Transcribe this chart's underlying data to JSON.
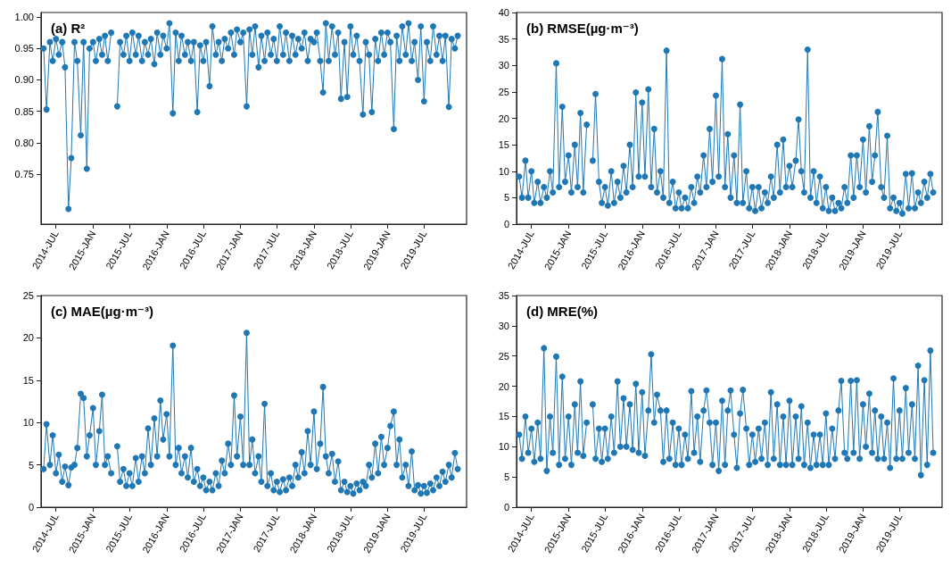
{
  "chart_data": [
    {
      "type": "line",
      "title": "(a) R²",
      "color": "#1f77b4",
      "marker": "circle",
      "xlim": [
        "2014-04-18",
        "2020-01-28"
      ],
      "ylim": [
        0.671,
        1.007
      ],
      "xticks": [
        {
          "value": "2014-07",
          "label": "2014-JUL"
        },
        {
          "value": "2015-01",
          "label": "2015-JAN"
        },
        {
          "value": "2015-07",
          "label": "2015-JUL"
        },
        {
          "value": "2016-01",
          "label": "2016-JAN"
        },
        {
          "value": "2016-07",
          "label": "2016-JUL"
        },
        {
          "value": "2017-01",
          "label": "2017-JAN"
        },
        {
          "value": "2017-07",
          "label": "2017-JUL"
        },
        {
          "value": "2018-01",
          "label": "2018-JAN"
        },
        {
          "value": "2018-07",
          "label": "2018-JUL"
        },
        {
          "value": "2019-01",
          "label": "2019-JAN"
        },
        {
          "value": "2019-07",
          "label": "2019-JUL"
        }
      ],
      "yticks": [
        0.75,
        {
          "value": 0.8,
          "label": "0.80"
        },
        0.85,
        {
          "value": 0.9,
          "label": "0.90"
        },
        0.95,
        {
          "value": 1,
          "label": "1.00"
        }
      ],
      "x": [
        "2014-05-01",
        "2014-05-15",
        "2014-06-01",
        "2014-06-15",
        "2014-07-01",
        "2014-07-15",
        "2014-08-01",
        "2014-08-15",
        "2014-09-01",
        "2014-09-15",
        "2014-10-01",
        "2014-10-15",
        "2014-11-01",
        "2014-11-15",
        "2014-12-01",
        "2014-12-15",
        "2015-01-01",
        "2015-01-15",
        "2015-02-01",
        "2015-02-15",
        "2015-03-01",
        "2015-03-15",
        "2015-04-01",
        "2015-04-15",
        "2015-05-01",
        "2015-05-15",
        "2015-06-01",
        "2015-06-15",
        "2015-07-01",
        "2015-07-15",
        "2015-08-01",
        "2015-08-15",
        "2015-09-01",
        "2015-09-15",
        "2015-10-01",
        "2015-10-15",
        "2015-11-01",
        "2015-11-15",
        "2015-12-01",
        "2015-12-15",
        "2016-01-01",
        "2016-01-15",
        "2016-02-01",
        "2016-02-15",
        "2016-03-01",
        "2016-03-15",
        "2016-04-01",
        "2016-04-15",
        "2016-05-01",
        "2016-05-15",
        "2016-06-01",
        "2016-06-15",
        "2016-07-01",
        "2016-07-15",
        "2016-08-01",
        "2016-08-15",
        "2016-09-01",
        "2016-09-15",
        "2016-10-01",
        "2016-10-15",
        "2016-11-01",
        "2016-11-15",
        "2016-12-01",
        "2016-12-15",
        "2017-01-01",
        "2017-01-15",
        "2017-02-01",
        "2017-02-15",
        "2017-03-01",
        "2017-03-15",
        "2017-04-01",
        "2017-04-15",
        "2017-05-01",
        "2017-05-15",
        "2017-06-01",
        "2017-06-15",
        "2017-07-01",
        "2017-07-15",
        "2017-08-01",
        "2017-08-15",
        "2017-09-01",
        "2017-09-15",
        "2017-10-01",
        "2017-10-15",
        "2017-11-01",
        "2017-11-15",
        "2017-12-01",
        "2017-12-15",
        "2018-01-01",
        "2018-01-15",
        "2018-02-01",
        "2018-02-15",
        "2018-03-01",
        "2018-03-15",
        "2018-04-01",
        "2018-04-15",
        "2018-05-01",
        "2018-05-15",
        "2018-06-01",
        "2018-06-15",
        "2018-07-01",
        "2018-07-15",
        "2018-08-01",
        "2018-08-15",
        "2018-09-01",
        "2018-09-15",
        "2018-10-01",
        "2018-10-15",
        "2018-11-01",
        "2018-11-15",
        "2018-12-01",
        "2018-12-15",
        "2019-01-01",
        "2019-01-15",
        "2019-02-01",
        "2019-02-15",
        "2019-03-01",
        "2019-03-15",
        "2019-04-01",
        "2019-04-15",
        "2019-05-01",
        "2019-05-15",
        "2019-06-01",
        "2019-06-15",
        "2019-07-01",
        "2019-07-15",
        "2019-08-01",
        "2019-08-15",
        "2019-09-01",
        "2019-09-15",
        "2019-10-01",
        "2019-10-15",
        "2019-11-01",
        "2019-11-15",
        "2019-12-01",
        "2019-12-15"
      ],
      "values": [
        0.95,
        0.853,
        0.96,
        0.93,
        0.965,
        0.94,
        0.96,
        0.92,
        0.695,
        0.776,
        0.96,
        0.93,
        0.812,
        0.96,
        0.759,
        0.95,
        0.96,
        0.93,
        0.965,
        0.94,
        0.97,
        0.93,
        0.975,
        null,
        0.858,
        0.96,
        0.94,
        0.97,
        0.93,
        0.975,
        0.94,
        0.97,
        0.93,
        0.96,
        0.94,
        0.965,
        0.925,
        0.975,
        0.94,
        0.97,
        0.95,
        0.99,
        0.847,
        0.975,
        0.93,
        0.97,
        0.94,
        0.96,
        0.93,
        0.96,
        0.849,
        0.955,
        0.93,
        0.96,
        0.89,
        0.985,
        0.94,
        0.96,
        0.93,
        0.965,
        0.95,
        0.975,
        0.94,
        0.98,
        0.96,
        0.975,
        0.858,
        0.98,
        0.94,
        0.985,
        0.92,
        0.97,
        0.93,
        0.975,
        0.94,
        0.965,
        0.93,
        0.985,
        0.94,
        0.975,
        0.93,
        0.97,
        0.94,
        0.965,
        0.95,
        0.975,
        0.93,
        0.965,
        0.96,
        0.975,
        0.93,
        0.88,
        0.99,
        0.93,
        0.985,
        0.94,
        0.975,
        0.87,
        0.96,
        0.873,
        0.985,
        0.94,
        0.97,
        0.93,
        0.845,
        0.96,
        0.94,
        0.849,
        0.965,
        0.93,
        0.975,
        0.94,
        0.975,
        0.96,
        0.822,
        0.97,
        0.93,
        0.985,
        0.94,
        0.99,
        0.93,
        0.96,
        0.9,
        0.985,
        0.866,
        0.96,
        0.93,
        0.985,
        0.94,
        0.97,
        0.93,
        0.97,
        0.857,
        0.965,
        0.95,
        0.97
      ]
    },
    {
      "type": "line",
      "title": "(b) RMSE(µg·m⁻³)",
      "color": "#1f77b4",
      "marker": "circle",
      "xlim": [
        "2014-04-18",
        "2020-01-28"
      ],
      "ylim": [
        0,
        40
      ],
      "xticks": [
        {
          "value": "2014-07",
          "label": "2014-JUL"
        },
        {
          "value": "2015-01",
          "label": "2015-JAN"
        },
        {
          "value": "2015-07",
          "label": "2015-JUL"
        },
        {
          "value": "2016-01",
          "label": "2016-JAN"
        },
        {
          "value": "2016-07",
          "label": "2016-JUL"
        },
        {
          "value": "2017-01",
          "label": "2017-JAN"
        },
        {
          "value": "2017-07",
          "label": "2017-JUL"
        },
        {
          "value": "2018-01",
          "label": "2018-JAN"
        },
        {
          "value": "2018-07",
          "label": "2018-JUL"
        },
        {
          "value": "2019-01",
          "label": "2019-JAN"
        },
        {
          "value": "2019-07",
          "label": "2019-JUL"
        }
      ],
      "yticks": [
        0,
        5,
        10,
        15,
        20,
        25,
        30,
        35,
        40
      ],
      "x": [
        "2014-05-01",
        "2014-05-15",
        "2014-06-01",
        "2014-06-15",
        "2014-07-01",
        "2014-07-15",
        "2014-08-01",
        "2014-08-15",
        "2014-09-01",
        "2014-09-15",
        "2014-10-01",
        "2014-10-15",
        "2014-11-01",
        "2014-11-15",
        "2014-12-01",
        "2014-12-15",
        "2015-01-01",
        "2015-01-15",
        "2015-02-01",
        "2015-02-15",
        "2015-03-01",
        "2015-03-15",
        "2015-04-01",
        "2015-04-15",
        "2015-05-01",
        "2015-05-15",
        "2015-06-01",
        "2015-06-15",
        "2015-07-01",
        "2015-07-15",
        "2015-08-01",
        "2015-08-15",
        "2015-09-01",
        "2015-09-15",
        "2015-10-01",
        "2015-10-15",
        "2015-11-01",
        "2015-11-15",
        "2015-12-01",
        "2015-12-15",
        "2016-01-01",
        "2016-01-15",
        "2016-02-01",
        "2016-02-15",
        "2016-03-01",
        "2016-03-15",
        "2016-04-01",
        "2016-04-15",
        "2016-05-01",
        "2016-05-15",
        "2016-06-01",
        "2016-06-15",
        "2016-07-01",
        "2016-07-15",
        "2016-08-01",
        "2016-08-15",
        "2016-09-01",
        "2016-09-15",
        "2016-10-01",
        "2016-10-15",
        "2016-11-01",
        "2016-11-15",
        "2016-12-01",
        "2016-12-15",
        "2017-01-01",
        "2017-01-15",
        "2017-02-01",
        "2017-02-15",
        "2017-03-01",
        "2017-03-15",
        "2017-04-01",
        "2017-04-15",
        "2017-05-01",
        "2017-05-15",
        "2017-06-01",
        "2017-06-15",
        "2017-07-01",
        "2017-07-15",
        "2017-08-01",
        "2017-08-15",
        "2017-09-01",
        "2017-09-15",
        "2017-10-01",
        "2017-10-15",
        "2017-11-01",
        "2017-11-15",
        "2017-12-01",
        "2017-12-15",
        "2018-01-01",
        "2018-01-15",
        "2018-02-01",
        "2018-02-15",
        "2018-03-01",
        "2018-03-15",
        "2018-04-01",
        "2018-04-15",
        "2018-05-01",
        "2018-05-15",
        "2018-06-01",
        "2018-06-15",
        "2018-07-01",
        "2018-07-15",
        "2018-08-01",
        "2018-08-15",
        "2018-09-01",
        "2018-09-15",
        "2018-10-01",
        "2018-10-15",
        "2018-11-01",
        "2018-11-15",
        "2018-12-01",
        "2018-12-15",
        "2019-01-01",
        "2019-01-15",
        "2019-02-01",
        "2019-02-15",
        "2019-03-01",
        "2019-03-15",
        "2019-04-01",
        "2019-04-15",
        "2019-05-01",
        "2019-05-15",
        "2019-06-01",
        "2019-06-15",
        "2019-07-01",
        "2019-07-15",
        "2019-08-01",
        "2019-08-15",
        "2019-09-01",
        "2019-09-15",
        "2019-10-01",
        "2019-10-15",
        "2019-11-01",
        "2019-11-15",
        "2019-12-01",
        "2019-12-15"
      ],
      "values": [
        9,
        5,
        12,
        5,
        10,
        4,
        8,
        4,
        7,
        5,
        10,
        6,
        30.4,
        7,
        22.2,
        8,
        13,
        6,
        15,
        7,
        21,
        6,
        18.8,
        null,
        12,
        24.6,
        8,
        4,
        7,
        3.5,
        10,
        4,
        8,
        5,
        11,
        6,
        15,
        7,
        24.9,
        9,
        23,
        9,
        25.5,
        7,
        18,
        6,
        10,
        5,
        32.8,
        4,
        8,
        3,
        6,
        3,
        5,
        3,
        7,
        4,
        9,
        6,
        13,
        7,
        18,
        8,
        24.3,
        9,
        31.2,
        7,
        17,
        5,
        13,
        4,
        22.6,
        4,
        10,
        3,
        7,
        2.5,
        7,
        3,
        6,
        4,
        9,
        5,
        15,
        6,
        16,
        7,
        11,
        7,
        12,
        19.8,
        10,
        6,
        33,
        5,
        10,
        4,
        9,
        3,
        7,
        2.5,
        5,
        2.5,
        4,
        3,
        7,
        4,
        13,
        5,
        13,
        7,
        16,
        6,
        18.5,
        8,
        13,
        21.2,
        7,
        5,
        16.7,
        3,
        5,
        2.5,
        4,
        2,
        9.5,
        3,
        9.6,
        3,
        6,
        4,
        8,
        5,
        9.5,
        6
      ]
    },
    {
      "type": "line",
      "title": "(c) MAE(µg·m⁻³)",
      "color": "#1f77b4",
      "marker": "circle",
      "xlim": [
        "2014-04-18",
        "2020-01-28"
      ],
      "ylim": [
        0,
        25
      ],
      "xticks": [
        {
          "value": "2014-07",
          "label": "2014-JUL"
        },
        {
          "value": "2015-01",
          "label": "2015-JAN"
        },
        {
          "value": "2015-07",
          "label": "2015-JUL"
        },
        {
          "value": "2016-01",
          "label": "2016-JAN"
        },
        {
          "value": "2016-07",
          "label": "2016-JUL"
        },
        {
          "value": "2017-01",
          "label": "2017-JAN"
        },
        {
          "value": "2017-07",
          "label": "2017-JUL"
        },
        {
          "value": "2018-01",
          "label": "2018-JAN"
        },
        {
          "value": "2018-07",
          "label": "2018-JUL"
        },
        {
          "value": "2019-01",
          "label": "2019-JAN"
        },
        {
          "value": "2019-07",
          "label": "2019-JUL"
        }
      ],
      "yticks": [
        0,
        5,
        10,
        15,
        20,
        25
      ],
      "x": [
        "2014-05-01",
        "2014-05-15",
        "2014-06-01",
        "2014-06-15",
        "2014-07-01",
        "2014-07-15",
        "2014-08-01",
        "2014-08-15",
        "2014-09-01",
        "2014-09-15",
        "2014-10-01",
        "2014-10-15",
        "2014-11-01",
        "2014-11-15",
        "2014-12-01",
        "2014-12-15",
        "2015-01-01",
        "2015-01-15",
        "2015-02-01",
        "2015-02-15",
        "2015-03-01",
        "2015-03-15",
        "2015-04-01",
        "2015-04-15",
        "2015-05-01",
        "2015-05-15",
        "2015-06-01",
        "2015-06-15",
        "2015-07-01",
        "2015-07-15",
        "2015-08-01",
        "2015-08-15",
        "2015-09-01",
        "2015-09-15",
        "2015-10-01",
        "2015-10-15",
        "2015-11-01",
        "2015-11-15",
        "2015-12-01",
        "2015-12-15",
        "2016-01-01",
        "2016-01-15",
        "2016-02-01",
        "2016-02-15",
        "2016-03-01",
        "2016-03-15",
        "2016-04-01",
        "2016-04-15",
        "2016-05-01",
        "2016-05-15",
        "2016-06-01",
        "2016-06-15",
        "2016-07-01",
        "2016-07-15",
        "2016-08-01",
        "2016-08-15",
        "2016-09-01",
        "2016-09-15",
        "2016-10-01",
        "2016-10-15",
        "2016-11-01",
        "2016-11-15",
        "2016-12-01",
        "2016-12-15",
        "2017-01-01",
        "2017-01-15",
        "2017-02-01",
        "2017-02-15",
        "2017-03-01",
        "2017-03-15",
        "2017-04-01",
        "2017-04-15",
        "2017-05-01",
        "2017-05-15",
        "2017-06-01",
        "2017-06-15",
        "2017-07-01",
        "2017-07-15",
        "2017-08-01",
        "2017-08-15",
        "2017-09-01",
        "2017-09-15",
        "2017-10-01",
        "2017-10-15",
        "2017-11-01",
        "2017-11-15",
        "2017-12-01",
        "2017-12-15",
        "2018-01-01",
        "2018-01-15",
        "2018-02-01",
        "2018-02-15",
        "2018-03-01",
        "2018-03-15",
        "2018-04-01",
        "2018-04-15",
        "2018-05-01",
        "2018-05-15",
        "2018-06-01",
        "2018-06-15",
        "2018-07-01",
        "2018-07-15",
        "2018-08-01",
        "2018-08-15",
        "2018-09-01",
        "2018-09-15",
        "2018-10-01",
        "2018-10-15",
        "2018-11-01",
        "2018-11-15",
        "2018-12-01",
        "2018-12-15",
        "2019-01-01",
        "2019-01-15",
        "2019-02-01",
        "2019-02-15",
        "2019-03-01",
        "2019-03-15",
        "2019-04-01",
        "2019-04-15",
        "2019-05-01",
        "2019-05-15",
        "2019-06-01",
        "2019-06-15",
        "2019-07-01",
        "2019-07-15",
        "2019-08-01",
        "2019-08-15",
        "2019-09-01",
        "2019-09-15",
        "2019-10-01",
        "2019-10-15",
        "2019-11-01",
        "2019-11-15",
        "2019-12-01",
        "2019-12-15"
      ],
      "values": [
        4.5,
        9.8,
        5,
        8.5,
        4,
        6.2,
        3,
        4.8,
        2.6,
        4.7,
        5,
        7,
        13.4,
        12.9,
        6,
        8.5,
        11.7,
        5,
        9,
        13.3,
        5,
        6,
        4,
        null,
        7.2,
        3,
        4.5,
        2.5,
        4,
        2.5,
        5.8,
        3,
        6,
        4,
        9.3,
        5,
        10.5,
        6,
        12.6,
        8,
        11,
        6,
        19.1,
        5,
        7,
        4,
        6,
        3.5,
        7,
        3,
        4.5,
        2.5,
        3.5,
        2,
        3,
        2,
        4,
        2.5,
        5.5,
        4,
        7.5,
        5,
        13.2,
        6,
        10.7,
        5,
        20.6,
        5,
        8,
        4,
        6,
        3,
        12.2,
        2.5,
        4,
        2,
        3,
        1.8,
        3.3,
        2,
        3.5,
        2.5,
        5,
        3.5,
        6.5,
        4,
        9,
        5,
        11.3,
        4.5,
        7.5,
        14.2,
        6,
        4,
        6.3,
        3,
        5.4,
        2,
        3,
        1.8,
        2.5,
        1.6,
        2.8,
        2,
        3,
        2.5,
        5,
        3.5,
        7.5,
        4,
        8.3,
        5,
        7,
        9.6,
        11.3,
        5,
        8,
        3.5,
        5,
        2.5,
        6.6,
        2,
        2.6,
        1.6,
        2.5,
        1.7,
        2.8,
        2,
        3.5,
        2.5,
        4.2,
        3,
        5,
        3.5,
        6.4,
        4.5
      ]
    },
    {
      "type": "line",
      "title": "(d) MRE(%)",
      "color": "#1f77b4",
      "marker": "circle",
      "xlim": [
        "2014-04-18",
        "2020-01-28"
      ],
      "ylim": [
        0,
        35
      ],
      "xticks": [
        {
          "value": "2014-07",
          "label": "2014-JUL"
        },
        {
          "value": "2015-01",
          "label": "2015-JAN"
        },
        {
          "value": "2015-07",
          "label": "2015-JUL"
        },
        {
          "value": "2016-01",
          "label": "2016-JAN"
        },
        {
          "value": "2016-07",
          "label": "2016-JUL"
        },
        {
          "value": "2017-01",
          "label": "2017-JAN"
        },
        {
          "value": "2017-07",
          "label": "2017-JUL"
        },
        {
          "value": "2018-01",
          "label": "2018-JAN"
        },
        {
          "value": "2018-07",
          "label": "2018-JUL"
        },
        {
          "value": "2019-01",
          "label": "2019-JAN"
        },
        {
          "value": "2019-07",
          "label": "2019-JUL"
        }
      ],
      "yticks": [
        0,
        5,
        10,
        15,
        20,
        25,
        30,
        35
      ],
      "x": [
        "2014-05-01",
        "2014-05-15",
        "2014-06-01",
        "2014-06-15",
        "2014-07-01",
        "2014-07-15",
        "2014-08-01",
        "2014-08-15",
        "2014-09-01",
        "2014-09-15",
        "2014-10-01",
        "2014-10-15",
        "2014-11-01",
        "2014-11-15",
        "2014-12-01",
        "2014-12-15",
        "2015-01-01",
        "2015-01-15",
        "2015-02-01",
        "2015-02-15",
        "2015-03-01",
        "2015-03-15",
        "2015-04-01",
        "2015-04-15",
        "2015-05-01",
        "2015-05-15",
        "2015-06-01",
        "2015-06-15",
        "2015-07-01",
        "2015-07-15",
        "2015-08-01",
        "2015-08-15",
        "2015-09-01",
        "2015-09-15",
        "2015-10-01",
        "2015-10-15",
        "2015-11-01",
        "2015-11-15",
        "2015-12-01",
        "2015-12-15",
        "2016-01-01",
        "2016-01-15",
        "2016-02-01",
        "2016-02-15",
        "2016-03-01",
        "2016-03-15",
        "2016-04-01",
        "2016-04-15",
        "2016-05-01",
        "2016-05-15",
        "2016-06-01",
        "2016-06-15",
        "2016-07-01",
        "2016-07-15",
        "2016-08-01",
        "2016-08-15",
        "2016-09-01",
        "2016-09-15",
        "2016-10-01",
        "2016-10-15",
        "2016-11-01",
        "2016-11-15",
        "2016-12-01",
        "2016-12-15",
        "2017-01-01",
        "2017-01-15",
        "2017-02-01",
        "2017-02-15",
        "2017-03-01",
        "2017-03-15",
        "2017-04-01",
        "2017-04-15",
        "2017-05-01",
        "2017-05-15",
        "2017-06-01",
        "2017-06-15",
        "2017-07-01",
        "2017-07-15",
        "2017-08-01",
        "2017-08-15",
        "2017-09-01",
        "2017-09-15",
        "2017-10-01",
        "2017-10-15",
        "2017-11-01",
        "2017-11-15",
        "2017-12-01",
        "2017-12-15",
        "2018-01-01",
        "2018-01-15",
        "2018-02-01",
        "2018-02-15",
        "2018-03-01",
        "2018-03-15",
        "2018-04-01",
        "2018-04-15",
        "2018-05-01",
        "2018-05-15",
        "2018-06-01",
        "2018-06-15",
        "2018-07-01",
        "2018-07-15",
        "2018-08-01",
        "2018-08-15",
        "2018-09-01",
        "2018-09-15",
        "2018-10-01",
        "2018-10-15",
        "2018-11-01",
        "2018-11-15",
        "2018-12-01",
        "2018-12-15",
        "2019-01-01",
        "2019-01-15",
        "2019-02-01",
        "2019-02-15",
        "2019-03-01",
        "2019-03-15",
        "2019-04-01",
        "2019-04-15",
        "2019-05-01",
        "2019-05-15",
        "2019-06-01",
        "2019-06-15",
        "2019-07-01",
        "2019-07-15",
        "2019-08-01",
        "2019-08-15",
        "2019-09-01",
        "2019-09-15",
        "2019-10-01",
        "2019-10-15",
        "2019-11-01",
        "2019-11-15",
        "2019-12-01",
        "2019-12-15"
      ],
      "values": [
        12,
        8,
        15,
        9,
        13,
        7.5,
        14,
        8,
        26.3,
        6,
        15,
        9,
        24.9,
        7,
        21.6,
        8,
        15,
        7,
        17,
        9,
        20.8,
        8.5,
        14,
        null,
        17,
        8,
        13,
        7.5,
        13,
        8,
        15,
        9,
        20.8,
        10,
        18,
        10,
        17,
        9.5,
        20.4,
        9,
        19,
        8.5,
        16,
        25.3,
        14,
        18.6,
        16,
        7.5,
        16,
        8,
        14,
        7,
        13,
        7,
        12,
        8,
        19.2,
        9,
        15,
        7.5,
        16,
        19.3,
        14,
        7,
        14,
        6,
        17.6,
        7,
        16,
        19.3,
        12,
        6.5,
        15.5,
        19.4,
        13,
        7,
        12,
        7.5,
        13,
        8,
        14,
        7,
        19,
        8,
        17,
        7,
        15,
        7,
        17.6,
        7,
        15,
        8,
        16.7,
        7,
        14,
        6.5,
        12,
        7,
        12,
        7,
        15.5,
        7,
        13,
        8,
        16,
        20.9,
        9,
        8,
        20.9,
        9,
        21,
        8,
        17,
        10,
        18.8,
        9,
        16,
        8,
        15,
        8,
        14,
        6.5,
        21.3,
        8,
        16,
        8,
        19.7,
        9,
        17,
        8,
        23.4,
        5.3,
        21,
        7,
        25.9,
        9
      ]
    }
  ]
}
